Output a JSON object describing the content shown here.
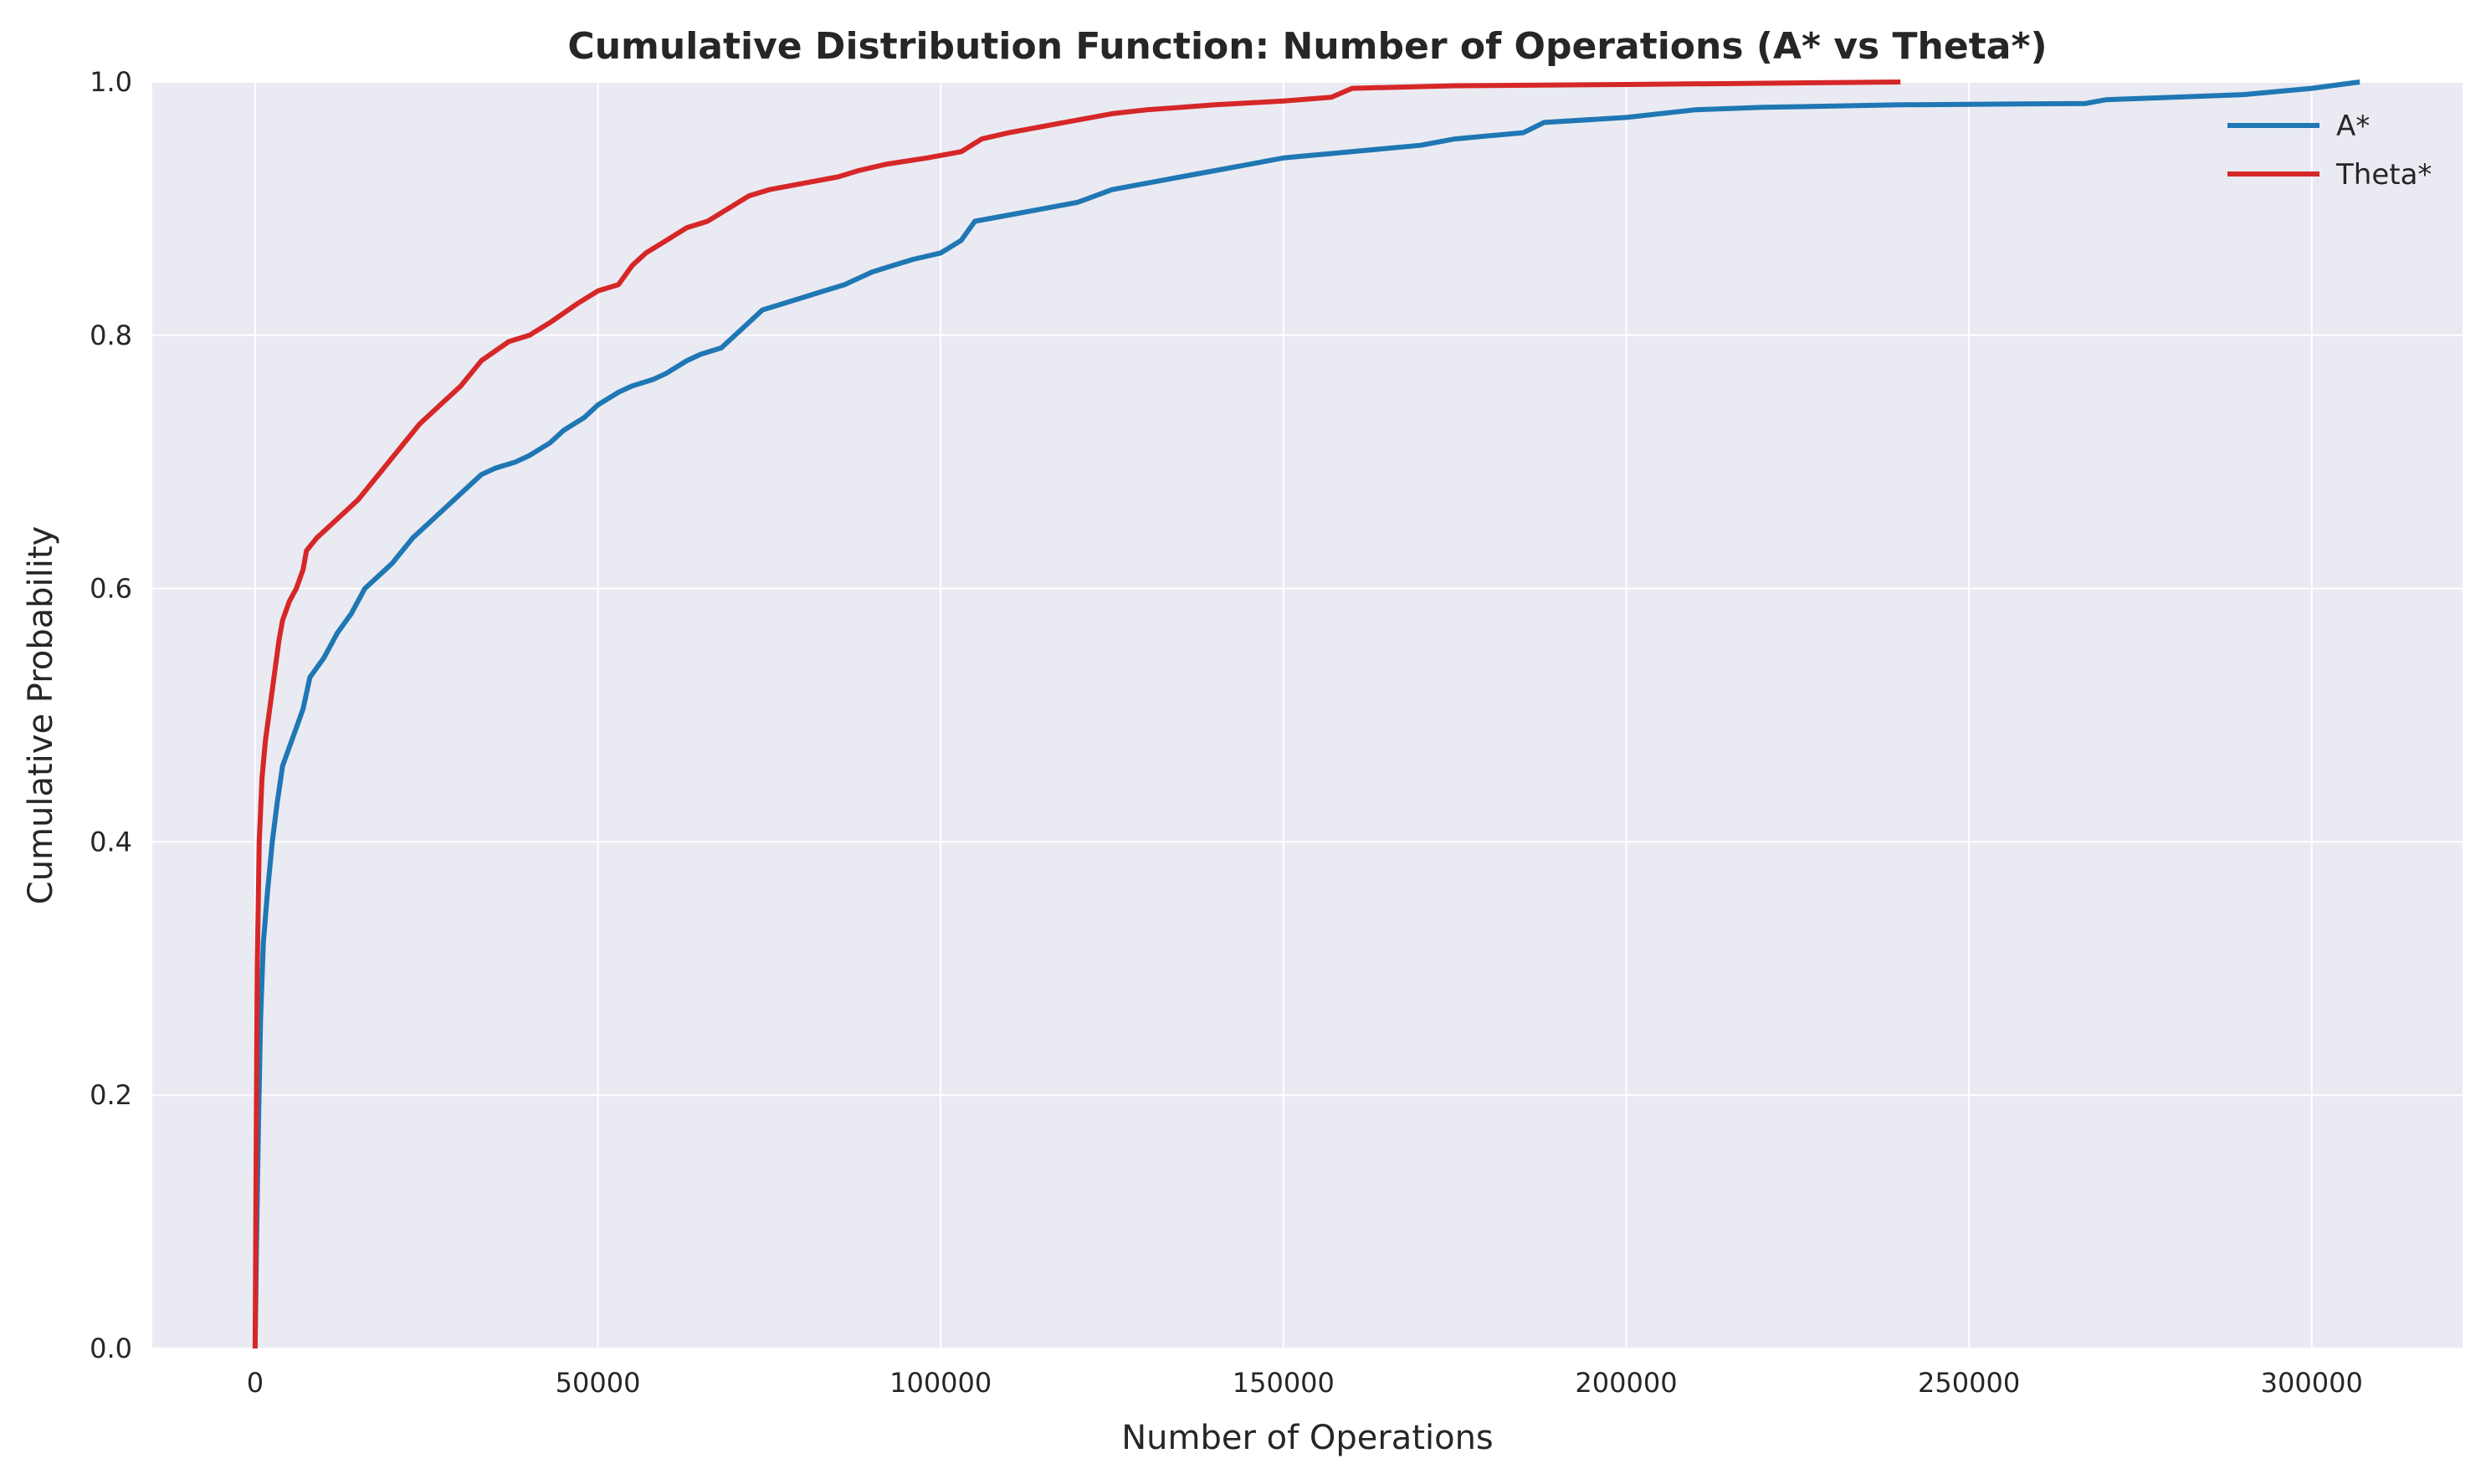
{
  "chart_data": {
    "type": "line",
    "title": "Cumulative Distribution Function: Number of Operations (A* vs Theta*)",
    "xlabel": "Number of Operations",
    "ylabel": "Cumulative Probability",
    "xlim": [
      -15000,
      322000
    ],
    "ylim": [
      0,
      1
    ],
    "x_ticks": [
      0,
      50000,
      100000,
      150000,
      200000,
      250000,
      300000
    ],
    "y_ticks": [
      0.0,
      0.2,
      0.4,
      0.6,
      0.8,
      1.0
    ],
    "x_tick_labels": [
      "0",
      "50000",
      "100000",
      "150000",
      "200000",
      "250000",
      "300000"
    ],
    "y_tick_labels": [
      "0.0",
      "0.2",
      "0.4",
      "0.6",
      "0.8",
      "1.0"
    ],
    "grid": true,
    "legend_position": "top-right",
    "background_color": "#eaeaf2",
    "series": [
      {
        "name": "A*",
        "color": "#1f77b4",
        "points": [
          [
            0,
            0.0
          ],
          [
            200,
            0.08
          ],
          [
            500,
            0.18
          ],
          [
            800,
            0.26
          ],
          [
            1200,
            0.32
          ],
          [
            1800,
            0.36
          ],
          [
            2500,
            0.4
          ],
          [
            3200,
            0.43
          ],
          [
            4000,
            0.46
          ],
          [
            5000,
            0.475
          ],
          [
            6000,
            0.49
          ],
          [
            7000,
            0.505
          ],
          [
            8000,
            0.53
          ],
          [
            10000,
            0.545
          ],
          [
            12000,
            0.565
          ],
          [
            14000,
            0.58
          ],
          [
            16000,
            0.6
          ],
          [
            18000,
            0.61
          ],
          [
            20000,
            0.62
          ],
          [
            23000,
            0.64
          ],
          [
            25000,
            0.65
          ],
          [
            28000,
            0.665
          ],
          [
            30000,
            0.675
          ],
          [
            33000,
            0.69
          ],
          [
            35000,
            0.695
          ],
          [
            38000,
            0.7
          ],
          [
            40000,
            0.705
          ],
          [
            43000,
            0.715
          ],
          [
            45000,
            0.725
          ],
          [
            48000,
            0.735
          ],
          [
            50000,
            0.745
          ],
          [
            53000,
            0.755
          ],
          [
            55000,
            0.76
          ],
          [
            58000,
            0.765
          ],
          [
            60000,
            0.77
          ],
          [
            63000,
            0.78
          ],
          [
            65000,
            0.785
          ],
          [
            68000,
            0.79
          ],
          [
            70000,
            0.8
          ],
          [
            72000,
            0.81
          ],
          [
            74000,
            0.82
          ],
          [
            77000,
            0.825
          ],
          [
            80000,
            0.83
          ],
          [
            83000,
            0.835
          ],
          [
            86000,
            0.84
          ],
          [
            88000,
            0.845
          ],
          [
            90000,
            0.85
          ],
          [
            93000,
            0.855
          ],
          [
            96000,
            0.86
          ],
          [
            100000,
            0.865
          ],
          [
            103000,
            0.875
          ],
          [
            105000,
            0.89
          ],
          [
            110000,
            0.895
          ],
          [
            115000,
            0.9
          ],
          [
            120000,
            0.905
          ],
          [
            125000,
            0.915
          ],
          [
            130000,
            0.92
          ],
          [
            135000,
            0.925
          ],
          [
            140000,
            0.93
          ],
          [
            145000,
            0.935
          ],
          [
            150000,
            0.94
          ],
          [
            160000,
            0.945
          ],
          [
            170000,
            0.95
          ],
          [
            175000,
            0.955
          ],
          [
            185000,
            0.96
          ],
          [
            188000,
            0.968
          ],
          [
            200000,
            0.972
          ],
          [
            210000,
            0.978
          ],
          [
            220000,
            0.98
          ],
          [
            240000,
            0.982
          ],
          [
            267000,
            0.983
          ],
          [
            270000,
            0.986
          ],
          [
            290000,
            0.99
          ],
          [
            300000,
            0.995
          ],
          [
            307000,
            1.0
          ]
        ]
      },
      {
        "name": "Theta*",
        "color": "#d62728",
        "points": [
          [
            0,
            0.0
          ],
          [
            150,
            0.15
          ],
          [
            300,
            0.3
          ],
          [
            600,
            0.4
          ],
          [
            1000,
            0.45
          ],
          [
            1500,
            0.48
          ],
          [
            2000,
            0.5
          ],
          [
            2500,
            0.52
          ],
          [
            3000,
            0.54
          ],
          [
            3500,
            0.56
          ],
          [
            4000,
            0.575
          ],
          [
            5000,
            0.59
          ],
          [
            6000,
            0.6
          ],
          [
            7000,
            0.615
          ],
          [
            7500,
            0.63
          ],
          [
            9000,
            0.64
          ],
          [
            12000,
            0.655
          ],
          [
            15000,
            0.67
          ],
          [
            18000,
            0.69
          ],
          [
            21000,
            0.71
          ],
          [
            24000,
            0.73
          ],
          [
            27000,
            0.745
          ],
          [
            30000,
            0.76
          ],
          [
            33000,
            0.78
          ],
          [
            37000,
            0.795
          ],
          [
            40000,
            0.8
          ],
          [
            43000,
            0.81
          ],
          [
            47000,
            0.825
          ],
          [
            50000,
            0.835
          ],
          [
            53000,
            0.84
          ],
          [
            55000,
            0.855
          ],
          [
            57000,
            0.865
          ],
          [
            60000,
            0.875
          ],
          [
            63000,
            0.885
          ],
          [
            66000,
            0.89
          ],
          [
            69000,
            0.9
          ],
          [
            72000,
            0.91
          ],
          [
            75000,
            0.915
          ],
          [
            80000,
            0.92
          ],
          [
            85000,
            0.925
          ],
          [
            88000,
            0.93
          ],
          [
            92000,
            0.935
          ],
          [
            98000,
            0.94
          ],
          [
            103000,
            0.945
          ],
          [
            106000,
            0.955
          ],
          [
            110000,
            0.96
          ],
          [
            115000,
            0.965
          ],
          [
            120000,
            0.97
          ],
          [
            125000,
            0.975
          ],
          [
            130000,
            0.978
          ],
          [
            140000,
            0.982
          ],
          [
            150000,
            0.985
          ],
          [
            157000,
            0.988
          ],
          [
            160000,
            0.995
          ],
          [
            175000,
            0.997
          ],
          [
            200000,
            0.998
          ],
          [
            240000,
            1.0
          ]
        ]
      }
    ]
  }
}
